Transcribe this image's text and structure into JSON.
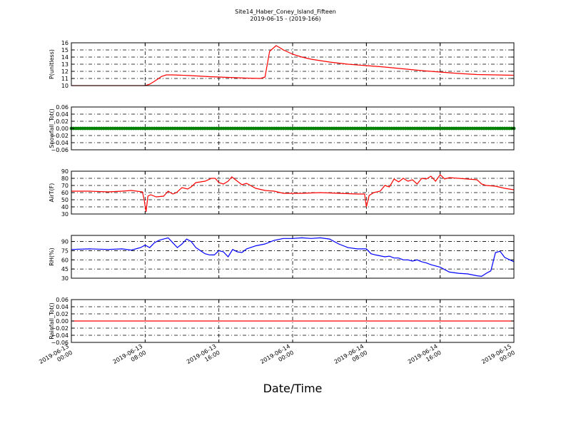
{
  "title_line1": "Site14_Haber_Coney_Island_Fifteen",
  "title_line2": "2019-06-15 - (2019-166)",
  "xlabel": "Date/Time",
  "x_ticks": [
    [
      "2019-06-13",
      "00:00"
    ],
    [
      "2019-06-13",
      "08:00"
    ],
    [
      "2019-06-13",
      "16:00"
    ],
    [
      "2019-06-14",
      "00:00"
    ],
    [
      "2019-06-14",
      "08:00"
    ],
    [
      "2019-06-14",
      "16:00"
    ],
    [
      "2019-06-15",
      "00:00"
    ]
  ],
  "chart_data": [
    {
      "type": "line",
      "ylabel": "P(unitless)",
      "ylim": [
        10,
        16
      ],
      "yticks": [
        "10",
        "11",
        "12",
        "13",
        "14",
        "15",
        "16"
      ],
      "color": "#ff0000",
      "grid": true,
      "x_hours": [
        0,
        2,
        4,
        6,
        8,
        8.5,
        9,
        9.8,
        10.3,
        11,
        13,
        15,
        17,
        19,
        20.5,
        21,
        21.5,
        22.2,
        22.5,
        23,
        24,
        25,
        26,
        28,
        30,
        32,
        34,
        36,
        38,
        40,
        42,
        44,
        46,
        48
      ],
      "values": [
        10.0,
        10.0,
        10.0,
        10.0,
        10.0,
        10.2,
        10.6,
        11.3,
        11.5,
        11.5,
        11.4,
        11.25,
        11.15,
        11.05,
        11.0,
        11.2,
        14.8,
        15.6,
        15.4,
        15.0,
        14.4,
        14.0,
        13.7,
        13.3,
        13.0,
        12.8,
        12.6,
        12.35,
        12.1,
        11.9,
        11.7,
        11.55,
        11.5,
        11.45
      ]
    },
    {
      "type": "scatter",
      "ylabel": "Snowfall_Tot()",
      "ylim": [
        -0.06,
        0.06
      ],
      "yticks": [
        "−0.06",
        "−0.04",
        "−0.02",
        "0.00",
        "0.02",
        "0.04",
        "0.06"
      ],
      "color": "#008000",
      "grid": true,
      "x_range_hours": [
        0,
        48
      ],
      "constant_value": 0.0
    },
    {
      "type": "line",
      "ylabel": "AirT(F)",
      "ylim": [
        30,
        90
      ],
      "yticks": [
        "30",
        "40",
        "50",
        "60",
        "70",
        "80",
        "90"
      ],
      "color": "#ff0000",
      "grid": true,
      "x_hours": [
        0,
        2,
        4,
        5.5,
        6.5,
        7.7,
        7.9,
        8.1,
        8.3,
        8.6,
        9.2,
        10,
        10.5,
        11,
        11.4,
        12,
        12.6,
        13,
        13.5,
        14.5,
        15.2,
        15.6,
        16,
        16.5,
        17,
        17.4,
        17.8,
        18.5,
        19,
        20,
        21,
        22,
        23,
        25,
        27,
        29,
        31,
        31.8,
        32,
        32.3,
        32.8,
        33.5,
        34,
        34.5,
        35,
        35.5,
        36,
        36.5,
        37,
        37.5,
        38,
        38.5,
        39,
        39.5,
        40,
        40.5,
        41,
        42,
        43,
        44,
        44.5,
        45,
        46,
        47,
        48
      ],
      "values": [
        62,
        62,
        61,
        62,
        63,
        61,
        50,
        33,
        55,
        57,
        54,
        55,
        62,
        58,
        60,
        67,
        65,
        68,
        74,
        76,
        80,
        80,
        74,
        72,
        76,
        82,
        78,
        71,
        73,
        66,
        63,
        62,
        59,
        59,
        60,
        59,
        58,
        58,
        40,
        56,
        60,
        62,
        70,
        68,
        79,
        75,
        80,
        76,
        78,
        72,
        80,
        79,
        83,
        76,
        85,
        79,
        81,
        80,
        79,
        78,
        72,
        70,
        69,
        66,
        64
      ]
    },
    {
      "type": "line",
      "ylabel": "RH(%)",
      "ylim": [
        30,
        100
      ],
      "yticks": [
        "30",
        "45",
        "60",
        "75",
        "90"
      ],
      "color": "#0000ff",
      "grid": true,
      "x_hours": [
        0,
        2,
        4,
        5.5,
        6.5,
        7.5,
        8,
        8.5,
        9,
        9.5,
        10,
        10.5,
        11,
        11.5,
        12,
        12.5,
        13,
        13.5,
        14,
        14.5,
        15,
        15.5,
        16,
        16.5,
        17,
        17.5,
        18,
        18.5,
        19,
        20,
        21,
        22,
        23,
        24,
        25,
        26,
        27,
        28,
        29,
        30,
        31,
        32,
        32.5,
        33,
        34,
        34.5,
        35,
        35.5,
        36,
        36.5,
        37,
        37.5,
        38,
        38.5,
        39,
        40,
        41,
        42,
        43,
        44,
        44.5,
        45,
        45.5,
        46,
        46.5,
        47,
        48
      ],
      "values": [
        77,
        78,
        77,
        78,
        76,
        80,
        84,
        80,
        88,
        92,
        94,
        96,
        88,
        80,
        86,
        94,
        90,
        80,
        75,
        70,
        68,
        68,
        75,
        73,
        65,
        77,
        73,
        72,
        78,
        83,
        86,
        92,
        95,
        95,
        96,
        95,
        96,
        94,
        86,
        80,
        78,
        78,
        70,
        68,
        65,
        66,
        63,
        63,
        60,
        60,
        58,
        60,
        57,
        55,
        52,
        48,
        40,
        38,
        37,
        34,
        33,
        38,
        42,
        72,
        74,
        64,
        57
      ]
    },
    {
      "type": "line",
      "ylabel": "Rainfall_Tot()",
      "ylim": [
        -0.06,
        0.06
      ],
      "yticks": [
        "−0.06",
        "−0.04",
        "−0.02",
        "0.00",
        "0.02",
        "0.04",
        "0.06"
      ],
      "color": "#ff0000",
      "grid": true,
      "x_hours": [
        0,
        48
      ],
      "values": [
        0.0,
        0.0
      ]
    }
  ]
}
